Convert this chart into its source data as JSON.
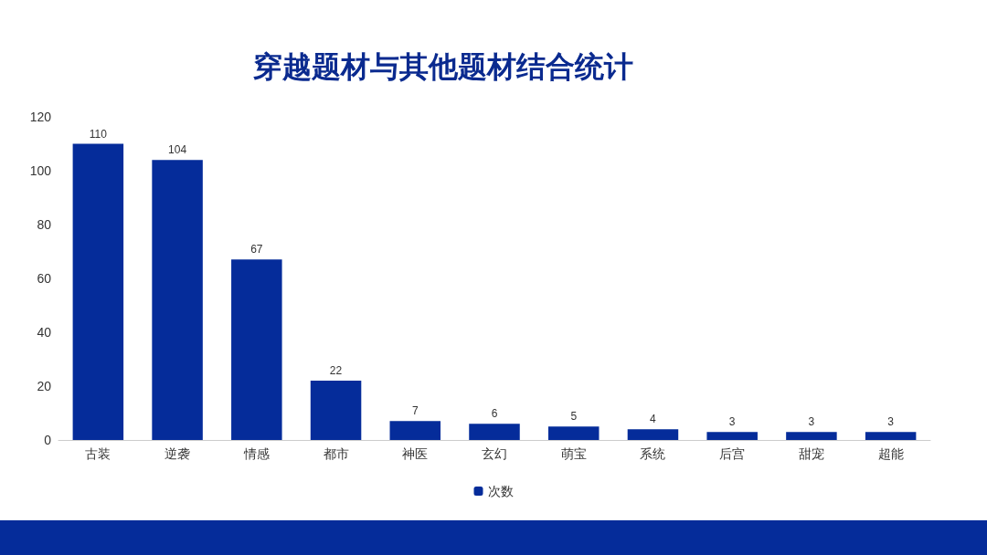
{
  "chart_data": {
    "type": "bar",
    "title": "穿越题材与其他题材结合统计",
    "categories": [
      "古装",
      "逆袭",
      "情感",
      "都市",
      "神医",
      "玄幻",
      "萌宝",
      "系统",
      "后宫",
      "甜宠",
      "超能"
    ],
    "series": [
      {
        "name": "次数",
        "color": "#052c9a",
        "values": [
          110,
          104,
          67,
          22,
          7,
          6,
          5,
          4,
          3,
          3,
          3
        ]
      }
    ],
    "ylim": [
      0,
      120
    ],
    "yticks": [
      0,
      20,
      40,
      60,
      80,
      100,
      120
    ],
    "grid": false,
    "legend": "bottom",
    "data_labels": true
  }
}
